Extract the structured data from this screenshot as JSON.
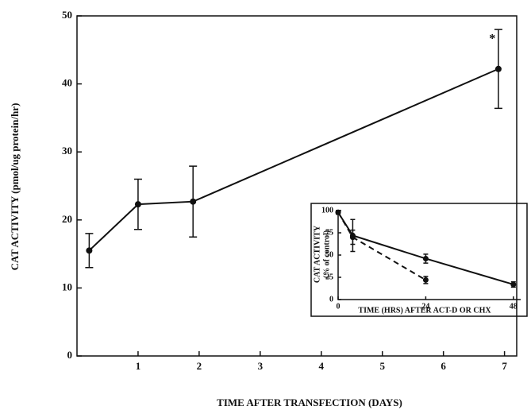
{
  "chart_data": [
    {
      "type": "line",
      "y_label": "CAT ACTIVITY (pmol/ug protein/hr)",
      "x_label": "TIME AFTER TRANSFECTION (DAYS)",
      "x": [
        0.2,
        1.0,
        1.9,
        6.9
      ],
      "series": [
        {
          "color": "#111111",
          "values": [
            15.5,
            22.3,
            22.7,
            42.2
          ],
          "errors": [
            2.5,
            3.7,
            5.2,
            5.8
          ]
        }
      ],
      "annotations": [
        {
          "text": "*",
          "x": 6.8,
          "y": 46.5
        }
      ],
      "xlim": [
        0,
        7.2
      ],
      "xticks": [
        1,
        2,
        3,
        4,
        5,
        6,
        7
      ],
      "ylim": [
        0,
        50
      ],
      "yticks": [
        0,
        10,
        20,
        30,
        40,
        50
      ]
    },
    {
      "type": "line",
      "y_label": [
        "CAT ACTIVITY",
        "(% of control)"
      ],
      "x_label": "TIME (HRS) AFTER  ACT-D OR CHX",
      "x": [
        0,
        4,
        24,
        48
      ],
      "series": [
        {
          "color": "#111111",
          "dash": false,
          "values": [
            98,
            72,
            46,
            17
          ],
          "errors": [
            2,
            18,
            5,
            3
          ]
        },
        {
          "color": "#111111",
          "dash": true,
          "values": [
            98,
            70,
            22,
            null
          ],
          "errors": [
            2,
            8,
            4,
            null
          ]
        }
      ],
      "xlim": [
        0,
        50
      ],
      "xticks": [
        0,
        24,
        48
      ],
      "ylim": [
        0,
        100
      ],
      "yticks": [
        0,
        25,
        50,
        75,
        100
      ]
    }
  ]
}
